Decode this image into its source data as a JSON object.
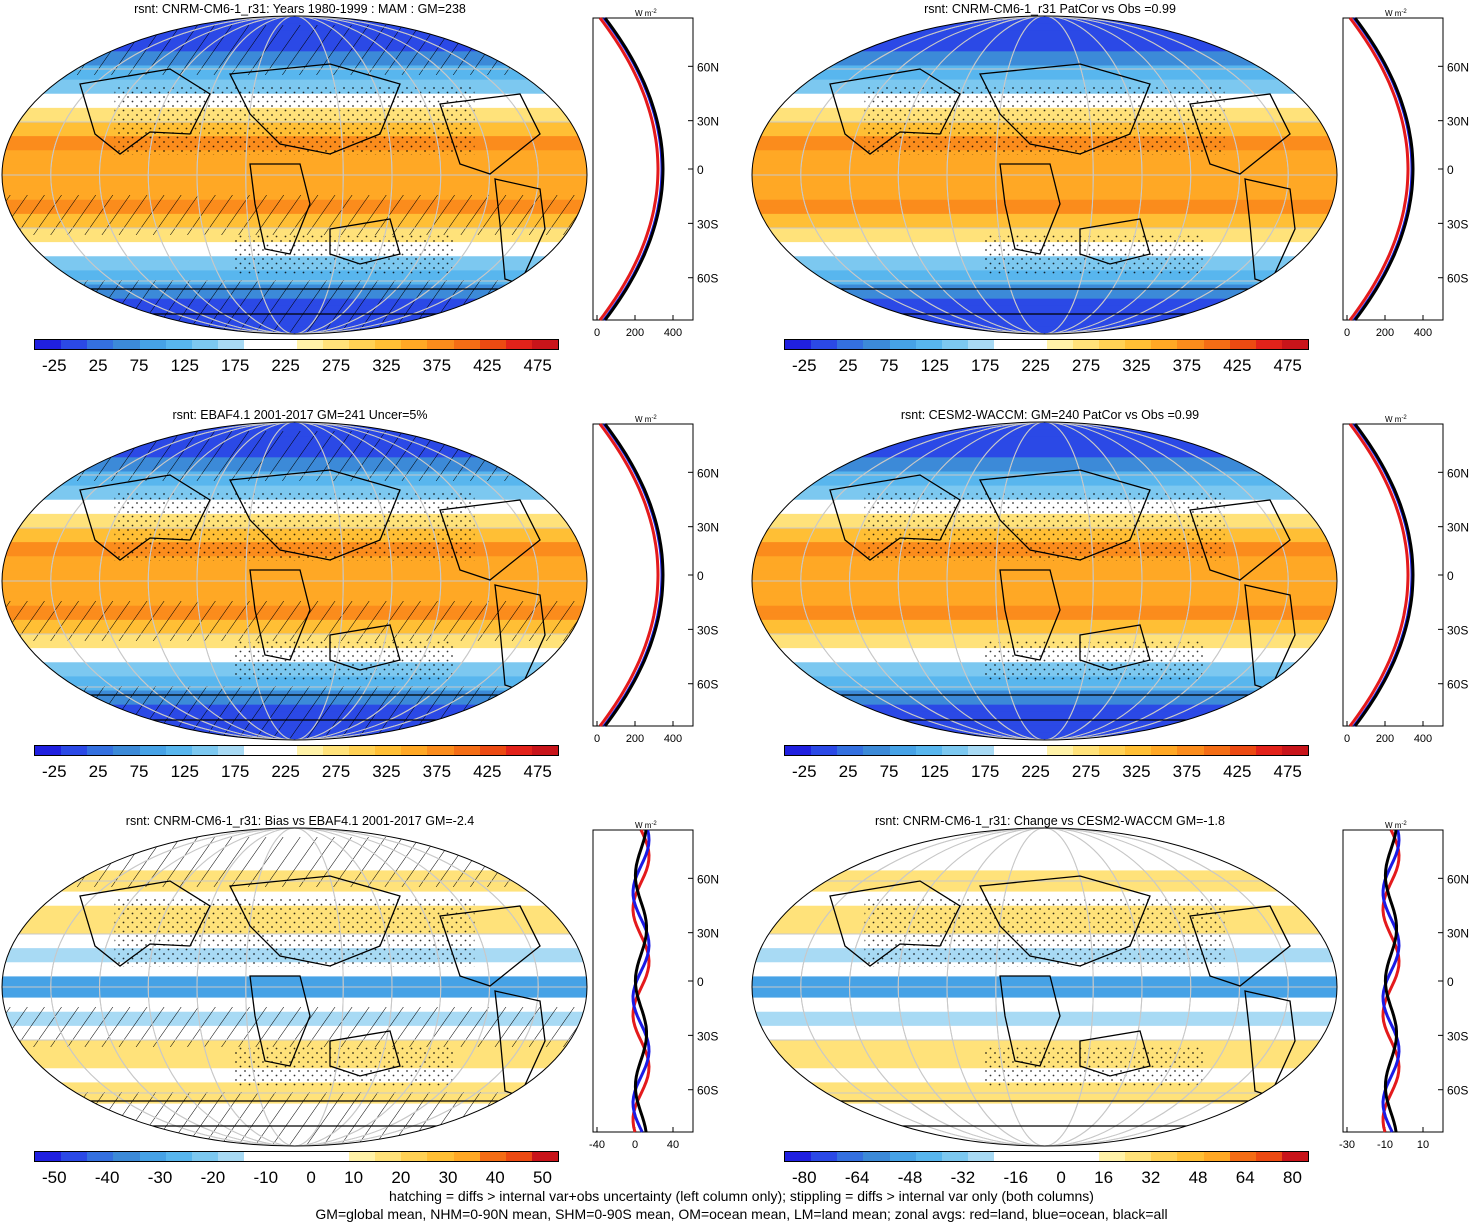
{
  "panels": [
    {
      "id": "p1",
      "title": "rsnt: CNRM-CM6-1_r31: Years 1980-1999 : MAM : GM=238",
      "scale": "abs",
      "hatch": true,
      "cbar_labels": [
        "-25",
        "25",
        "75",
        "125",
        "175",
        "225",
        "275",
        "325",
        "375",
        "425",
        "475"
      ],
      "zonal_ticks": [
        "0",
        "200",
        "400"
      ],
      "lat_labels": [
        "60N",
        "30N",
        "0",
        "30S",
        "60S"
      ]
    },
    {
      "id": "p2",
      "title": "rsnt: CNRM-CM6-1_r31 PatCor vs Obs =0.99",
      "scale": "abs",
      "hatch": false,
      "cbar_labels": [
        "-25",
        "25",
        "75",
        "125",
        "175",
        "225",
        "275",
        "325",
        "375",
        "425",
        "475"
      ],
      "zonal_ticks": [
        "0",
        "200",
        "400"
      ],
      "lat_labels": [
        "60N",
        "30N",
        "0",
        "30S",
        "60S"
      ]
    },
    {
      "id": "p3",
      "title": "rsnt: EBAF4.1 2001-2017 GM=241 Uncer=5%",
      "scale": "abs",
      "hatch": true,
      "cbar_labels": [
        "-25",
        "25",
        "75",
        "125",
        "175",
        "225",
        "275",
        "325",
        "375",
        "425",
        "475"
      ],
      "zonal_ticks": [
        "0",
        "200",
        "400"
      ],
      "lat_labels": [
        "60N",
        "30N",
        "0",
        "30S",
        "60S"
      ]
    },
    {
      "id": "p4",
      "title": "rsnt: CESM2-WACCM: GM=240 PatCor vs Obs =0.99",
      "scale": "abs",
      "hatch": false,
      "cbar_labels": [
        "-25",
        "25",
        "75",
        "125",
        "175",
        "225",
        "275",
        "325",
        "375",
        "425",
        "475"
      ],
      "zonal_ticks": [
        "0",
        "200",
        "400"
      ],
      "lat_labels": [
        "60N",
        "30N",
        "0",
        "30S",
        "60S"
      ]
    },
    {
      "id": "p5",
      "title": "rsnt: CNRM-CM6-1_r31: Bias vs EBAF4.1 2001-2017 GM=-2.4",
      "scale": "diff",
      "hatch": true,
      "cbar_labels": [
        "-50",
        "-40",
        "-30",
        "-20",
        "-10",
        "0",
        "10",
        "20",
        "30",
        "40",
        "50"
      ],
      "zonal_ticks": [
        "-40",
        "0",
        "40"
      ],
      "lat_labels": [
        "60N",
        "30N",
        "0",
        "30S",
        "60S"
      ]
    },
    {
      "id": "p6",
      "title": "rsnt: CNRM-CM6-1_r31: Change vs CESM2-WACCM GM=-1.8",
      "scale": "diff",
      "hatch": false,
      "cbar_labels": [
        "-80",
        "-64",
        "-48",
        "-32",
        "-16",
        "0",
        "16",
        "32",
        "48",
        "64",
        "80"
      ],
      "zonal_ticks": [
        "-30",
        "-10",
        "10"
      ],
      "lat_labels": [
        "60N",
        "30N",
        "0",
        "30S",
        "60S"
      ]
    }
  ],
  "units_label": "W m",
  "units_sup": "-2",
  "palette_abs": [
    "#2020e0",
    "#2b49e6",
    "#3470e0",
    "#3c8ad8",
    "#46a2e6",
    "#58b6ee",
    "#7cc8f0",
    "#a8daf4",
    "#ffffff",
    "#ffffff",
    "#fff2a8",
    "#ffe27a",
    "#ffd155",
    "#ffbf35",
    "#ffa825",
    "#fb8c1c",
    "#f46d15",
    "#ec4a12",
    "#e2221a",
    "#c8141a"
  ],
  "palette_diff": [
    "#2020e0",
    "#2b49e6",
    "#3470e0",
    "#3c8ad8",
    "#46a2e6",
    "#58b6ee",
    "#7cc8f0",
    "#a8daf4",
    "#ffffff",
    "#ffffff",
    "#ffffff",
    "#ffffff",
    "#fff2a8",
    "#ffe27a",
    "#ffd155",
    "#ffbf35",
    "#ffa825",
    "#f46d15",
    "#ec4a12",
    "#c8141a"
  ],
  "line_colors": {
    "land": "#e41a1c",
    "ocean": "#1a1ae6",
    "all": "#000000"
  },
  "footer": [
    "hatching = diffs > internal var+obs uncertainty (left column only); stippling = diffs > internal var only (both columns)",
    "GM=global mean, NHM=0-90N mean, SHM=0-90S mean, OM=ocean mean, LM=land mean; zonal avgs: red=land, blue=ocean, black=all"
  ]
}
